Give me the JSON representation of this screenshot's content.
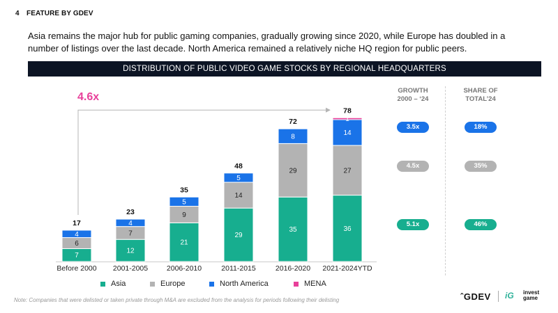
{
  "header": {
    "page_number": "4",
    "section": "FEATURE BY GDEV"
  },
  "intro": "Asia remains the major hub for public gaming companies, gradually growing since 2020, while Europe has doubled in a number of listings over the last decade. North America remained a relatively niche HQ region for public peers.",
  "banner": "DISTRIBUTION OF PUBLIC VIDEO GAME STOCKS BY REGIONAL HEADQUARTERS",
  "colors": {
    "asia": "#17ae8f",
    "europe": "#b3b3b3",
    "north_america": "#1a73e8",
    "mena": "#e8409a",
    "banner": "#0c1424",
    "growth_pill": "#1a73e8",
    "europe_pill": "#b3b3b3",
    "share_pill": "#17ae8f"
  },
  "chart_data": {
    "type": "bar",
    "stacked": true,
    "title": "DISTRIBUTION OF PUBLIC VIDEO GAME STOCKS BY REGIONAL HEADQUARTERS",
    "categories": [
      "Before 2000",
      "2001-2005",
      "2006-2010",
      "2011-2015",
      "2016-2020",
      "2021-2024YTD"
    ],
    "series": [
      {
        "name": "Asia",
        "key": "asia",
        "values": [
          7,
          12,
          21,
          29,
          35,
          36
        ]
      },
      {
        "name": "Europe",
        "key": "europe",
        "values": [
          6,
          7,
          9,
          14,
          29,
          27
        ]
      },
      {
        "name": "North America",
        "key": "north_america",
        "values": [
          4,
          4,
          5,
          5,
          8,
          14
        ]
      },
      {
        "name": "MENA",
        "key": "mena",
        "values": [
          0,
          0,
          0,
          0,
          0,
          1
        ]
      }
    ],
    "totals": [
      17,
      23,
      35,
      48,
      72,
      78
    ],
    "annotation": "4.6x",
    "ylim": [
      0,
      80
    ],
    "legend": "bottom",
    "xlabel": "",
    "ylabel": ""
  },
  "side_table": {
    "growth_header": [
      "GROWTH",
      "2000 – ‘24"
    ],
    "share_header": [
      "SHARE OF",
      "TOTAL’24"
    ],
    "rows": [
      {
        "growth": "3.5x",
        "share": "18%"
      },
      {
        "growth": "4.5x",
        "share": "35%"
      },
      {
        "growth": "5.1x",
        "share": "46%"
      }
    ]
  },
  "note": "Note: Companies that were delisted or taken private through M&A are excluded from the analysis for periods following their delisting",
  "brand": {
    "gdev": "ˆGDEV",
    "invest_game_logo": "iG",
    "invest_game": "invest game"
  }
}
